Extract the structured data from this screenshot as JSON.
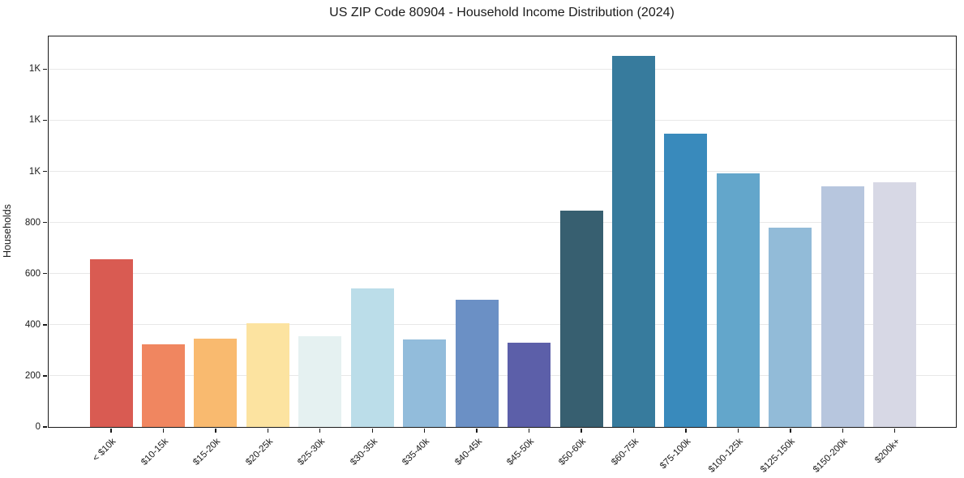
{
  "title": "US ZIP Code 80904 - Household Income Distribution (2024)",
  "chart_data": {
    "type": "bar",
    "title": "US ZIP Code 80904 - Household Income Distribution (2024)",
    "xlabel": "",
    "ylabel": "Households",
    "ylim": [
      0,
      1528
    ],
    "grid": "horizontal-only",
    "legend": "none",
    "background_color": "#ffffff",
    "gridline_color": "#e8e8e8",
    "axis_color": "#1a1a1a",
    "categories": [
      "< $10k",
      "$10-15k",
      "$15-20k",
      "$20-25k",
      "$25-30k",
      "$30-35k",
      "$35-40k",
      "$40-45k",
      "$45-50k",
      "$50-60k",
      "$60-75k",
      "$75-100k",
      "$100-125k",
      "$125-150k",
      "$150-200k",
      "$200k+"
    ],
    "values": [
      656,
      323,
      347,
      407,
      355,
      543,
      344,
      499,
      331,
      845,
      1452,
      1148,
      992,
      780,
      940,
      958
    ],
    "bar_colors": [
      "#d95b52",
      "#f08660",
      "#f9ba6f",
      "#fce3a0",
      "#e5f1f1",
      "#bbdde9",
      "#92bcdb",
      "#6b90c5",
      "#5c5fa9",
      "#375f70",
      "#377b9d",
      "#398abc",
      "#63a6cb",
      "#92bbd8",
      "#b7c6de",
      "#d7d8e5"
    ],
    "yticks": [
      {
        "value": 0,
        "label": "0"
      },
      {
        "value": 200,
        "label": "200"
      },
      {
        "value": 400,
        "label": "400"
      },
      {
        "value": 600,
        "label": "600"
      },
      {
        "value": 800,
        "label": "800"
      },
      {
        "value": 1000,
        "label": "1K"
      },
      {
        "value": 1200,
        "label": "1K"
      },
      {
        "value": 1400,
        "label": "1K"
      }
    ]
  }
}
